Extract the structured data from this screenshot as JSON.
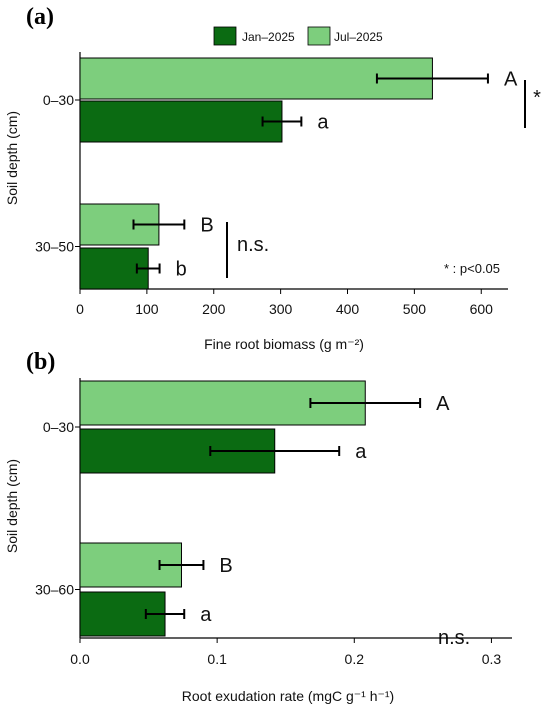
{
  "legend": {
    "jan": "Jan–2025",
    "jul": "Jul–2025",
    "jan_color": "#0b6b12",
    "jul_color": "#7dce7d"
  },
  "chart_data": [
    {
      "panel_label": "(a)",
      "type": "bar",
      "orientation": "horizontal",
      "xlabel": "Fine root biomass (g m⁻²)",
      "ylabel": "Soil depth (cm)",
      "xlim": [
        0,
        640
      ],
      "xticks": [
        "0",
        "100",
        "200",
        "300",
        "400",
        "500",
        "600"
      ],
      "categories": [
        "0–30",
        "30–50"
      ],
      "series": [
        {
          "name": "Jul–2025",
          "values": [
            527,
            118
          ],
          "errors": [
            83,
            38
          ],
          "letters": [
            "A",
            "B"
          ]
        },
        {
          "name": "Jan–2025",
          "values": [
            302,
            102
          ],
          "errors": [
            29,
            17
          ],
          "letters": [
            "a",
            "b"
          ]
        }
      ],
      "annotations": {
        "significance_top": "*",
        "significance_bottom": "n.s.",
        "note": "* : p<0.05"
      }
    },
    {
      "panel_label": "(b)",
      "type": "bar",
      "orientation": "horizontal",
      "xlabel": "Root exudation rate (mgC g⁻¹ h⁻¹)",
      "ylabel": "Soil depth (cm)",
      "xlim": [
        0,
        0.315
      ],
      "xticks": [
        "0.0",
        "0.1",
        "0.2",
        "0.3"
      ],
      "categories": [
        "0–30",
        "30–60"
      ],
      "series": [
        {
          "name": "Jul–2025",
          "values": [
            0.208,
            0.074
          ],
          "errors": [
            0.04,
            0.016
          ],
          "letters": [
            "A",
            "B"
          ]
        },
        {
          "name": "Jan–2025",
          "values": [
            0.142,
            0.062
          ],
          "errors": [
            0.047,
            0.014
          ],
          "letters": [
            "a",
            "a"
          ]
        }
      ],
      "annotations": {
        "significance_bottom": "n.s."
      }
    }
  ]
}
